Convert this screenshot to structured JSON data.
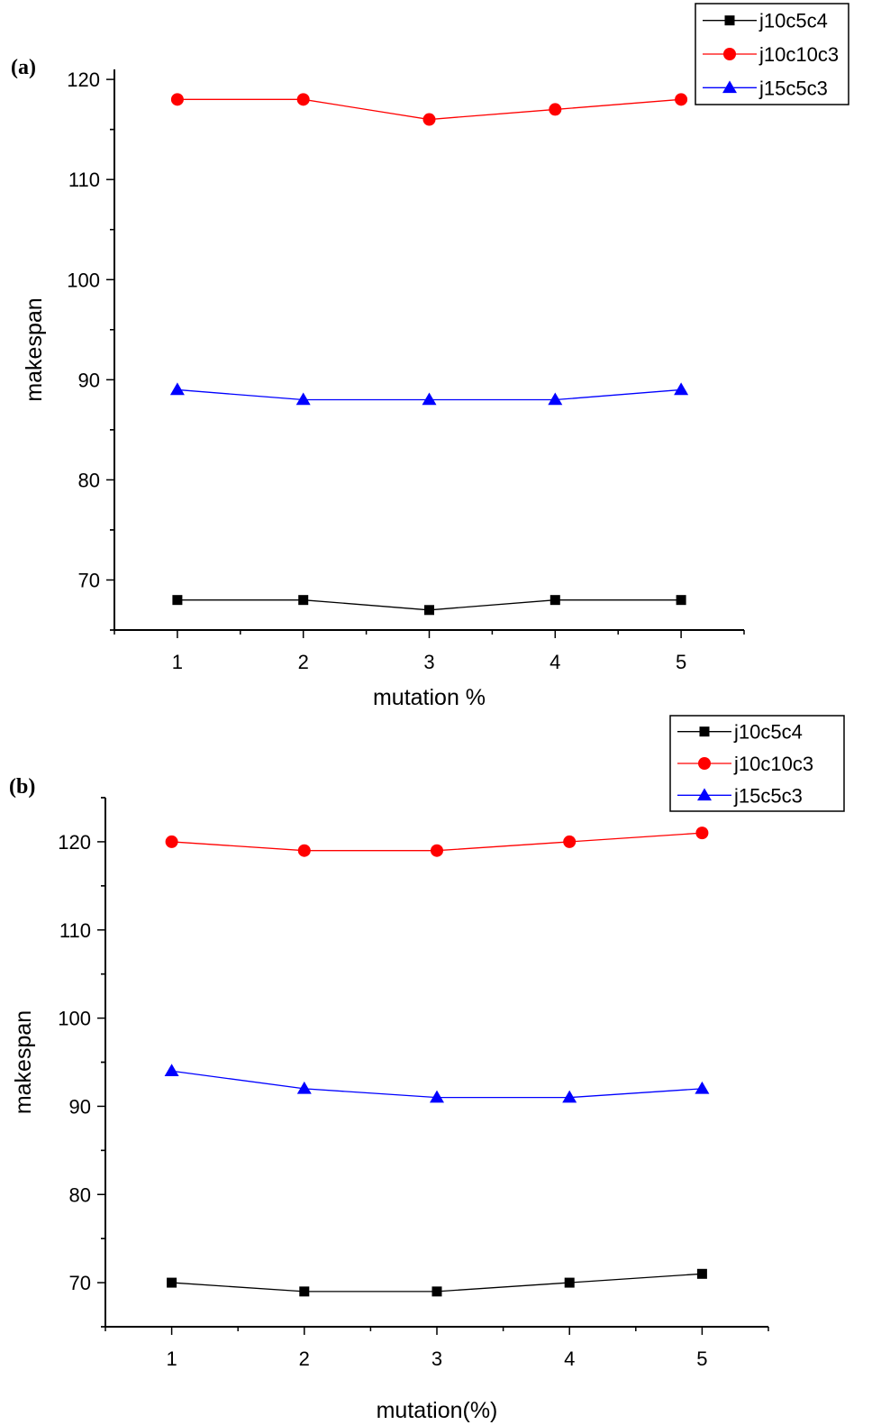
{
  "chart_data": [
    {
      "type": "line",
      "panel_label": "(a)",
      "xlabel": "mutation %",
      "ylabel": "makespan",
      "x": [
        1,
        2,
        3,
        4,
        5
      ],
      "xlim": [
        0.5,
        5.5
      ],
      "ylim": [
        65,
        121
      ],
      "xticks": [
        1,
        2,
        3,
        4,
        5
      ],
      "yticks": [
        70,
        80,
        90,
        100,
        110,
        120
      ],
      "legend_position": "top-right",
      "grid": false,
      "series": [
        {
          "name": "j10c5c4",
          "color": "#000000",
          "marker": "square",
          "values": [
            68,
            68,
            67,
            68,
            68
          ]
        },
        {
          "name": "j10c10c3",
          "color": "#ff0000",
          "marker": "circle",
          "values": [
            118,
            118,
            116,
            117,
            118
          ]
        },
        {
          "name": "j15c5c3",
          "color": "#0000ff",
          "marker": "triangle",
          "values": [
            89,
            88,
            88,
            88,
            89
          ]
        }
      ]
    },
    {
      "type": "line",
      "panel_label": "(b)",
      "xlabel": "mutation(%)",
      "ylabel": "makespan",
      "x": [
        1,
        2,
        3,
        4,
        5
      ],
      "xlim": [
        0.5,
        5.5
      ],
      "ylim": [
        65,
        125
      ],
      "xticks": [
        1,
        2,
        3,
        4,
        5
      ],
      "yticks": [
        70,
        80,
        90,
        100,
        110,
        120
      ],
      "legend_position": "top-right",
      "grid": false,
      "series": [
        {
          "name": "j10c5c4",
          "color": "#000000",
          "marker": "square",
          "values": [
            70,
            69,
            69,
            70,
            71
          ]
        },
        {
          "name": "j10c10c3",
          "color": "#ff0000",
          "marker": "circle",
          "values": [
            120,
            119,
            119,
            120,
            121
          ]
        },
        {
          "name": "j15c5c3",
          "color": "#0000ff",
          "marker": "triangle",
          "values": [
            94,
            92,
            91,
            91,
            92
          ]
        }
      ]
    }
  ]
}
